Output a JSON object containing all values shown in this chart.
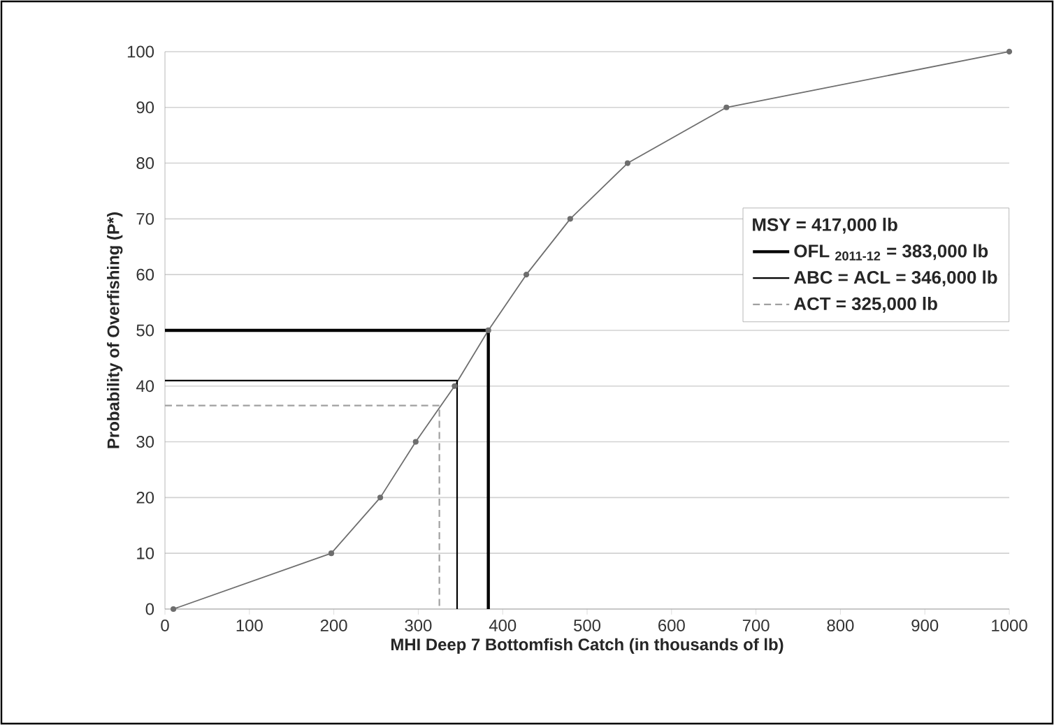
{
  "chart_data": {
    "type": "line",
    "xlabel": "MHI Deep 7 Bottomfish Catch (in thousands of lb)",
    "ylabel": "Probability of Overfishing (P*)",
    "legend_title": "MSY = 417,000 lb",
    "legend": "right",
    "grid": "y",
    "marker": "circle",
    "xlim": [
      0,
      1000
    ],
    "ylim": [
      0,
      100
    ],
    "xticks": [
      0,
      100,
      200,
      300,
      400,
      500,
      600,
      700,
      800,
      900,
      1000
    ],
    "yticks": [
      0,
      10,
      20,
      30,
      40,
      50,
      60,
      70,
      80,
      90,
      100
    ],
    "series": [
      {
        "color": "#6e6e6e",
        "x": [
          10,
          197,
          255,
          297,
          343,
          383,
          428,
          480,
          548,
          665,
          1000
        ],
        "values": [
          0,
          10,
          20,
          30,
          40,
          50,
          60,
          70,
          80,
          90,
          100
        ]
      },
      {
        "name": "OFL $_{2011-12}$ = 383,000 lb",
        "color": "#000000",
        "marker": "none",
        "line_style": "solid",
        "x": [
          0,
          383,
          383
        ],
        "values": [
          50,
          50,
          0
        ]
      },
      {
        "name": "ABC = ACL = 346,000 lb",
        "color": "#000000",
        "marker": "none",
        "line_style": "solid",
        "x": [
          0,
          346,
          346
        ],
        "values": [
          41,
          41,
          0
        ]
      },
      {
        "name": "ACT = 325,000 lb",
        "color": "#a0a0a0",
        "marker": "none",
        "line_style": "dashed",
        "x": [
          0,
          325,
          325
        ],
        "values": [
          36.5,
          36.5,
          0
        ]
      }
    ]
  }
}
